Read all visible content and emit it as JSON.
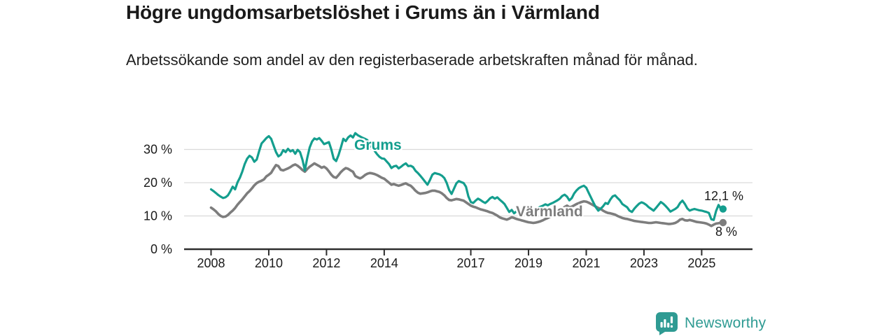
{
  "header": {
    "title": "Högre ungdomsarbetslöshet i Grums än i Värmland",
    "subtitle": "Arbetssökande som andel av den registerbaserade arbetskraften månad för månad."
  },
  "chart_data": {
    "type": "line",
    "title": "Högre ungdomsarbetslöshet i Grums än i Värmland",
    "subtitle": "Arbetssökande som andel av den registerbaserade arbetskraften månad för månad.",
    "xlabel": "",
    "ylabel": "",
    "grid": "horizontal",
    "x_frequency": "monthly",
    "x_start": "2008-01",
    "x_end": "2025-09",
    "xticks": [
      2008,
      2010,
      2012,
      2014,
      2017,
      2019,
      2021,
      2023,
      2025
    ],
    "xtick_labels": [
      "2008",
      "2010",
      "2012",
      "2014",
      "2017",
      "2019",
      "2021",
      "2023",
      "2025"
    ],
    "ylim": [
      0,
      36
    ],
    "yticks": [
      0,
      10,
      20,
      30
    ],
    "ytick_labels": [
      "0 %",
      "10 %",
      "20 %",
      "30 %"
    ],
    "series": [
      {
        "name": "Grums",
        "color": "#149e8e",
        "end_label": "12,1 %",
        "end_value": 12.1,
        "values": [
          18.0,
          17.5,
          16.9,
          16.3,
          15.8,
          15.4,
          15.6,
          16.2,
          17.4,
          18.8,
          18.0,
          20.1,
          21.5,
          23.4,
          25.6,
          27.2,
          28.1,
          27.6,
          26.3,
          27.0,
          29.5,
          31.8,
          32.6,
          33.4,
          34.0,
          33.2,
          31.2,
          29.2,
          27.9,
          28.4,
          29.8,
          29.2,
          30.2,
          29.4,
          29.8,
          28.7,
          29.9,
          29.2,
          26.9,
          23.7,
          27.4,
          30.6,
          32.4,
          33.3,
          33.0,
          33.4,
          32.6,
          31.6,
          31.9,
          32.2,
          30.0,
          27.2,
          26.5,
          28.3,
          30.6,
          33.2,
          32.5,
          33.6,
          34.2,
          33.6,
          34.9,
          34.3,
          33.9,
          33.5,
          33.2,
          32.8,
          31.5,
          30.4,
          29.6,
          28.6,
          27.8,
          27.3,
          27.2,
          26.4,
          25.6,
          24.4,
          24.9,
          25.1,
          24.3,
          24.8,
          25.4,
          25.8,
          25.0,
          25.1,
          24.7,
          23.6,
          22.9,
          22.1,
          21.2,
          20.3,
          19.4,
          20.8,
          22.4,
          22.9,
          22.7,
          22.5,
          22.1,
          21.4,
          19.9,
          17.8,
          16.6,
          18.2,
          19.8,
          20.5,
          20.2,
          19.9,
          18.8,
          15.9,
          14.2,
          13.9,
          14.6,
          15.2,
          14.8,
          14.3,
          13.9,
          14.5,
          15.3,
          15.7,
          15.2,
          15.6,
          14.9,
          14.3,
          13.6,
          12.4,
          11.2,
          11.8,
          10.8,
          11.4,
          11.0,
          11.6,
          12.1,
          12.4,
          12.8,
          12.2,
          11.6,
          11.9,
          12.4,
          12.8,
          13.1,
          13.5,
          13.2,
          13.6,
          13.9,
          14.3,
          14.7,
          15.2,
          16.0,
          16.4,
          15.8,
          14.7,
          15.4,
          16.8,
          17.7,
          18.4,
          18.8,
          19.1,
          18.5,
          17.0,
          15.5,
          14.0,
          12.6,
          11.6,
          12.2,
          12.9,
          13.9,
          13.6,
          14.9,
          15.9,
          16.2,
          15.4,
          14.7,
          13.6,
          13.1,
          12.6,
          11.6,
          11.2,
          12.2,
          13.0,
          13.7,
          14.1,
          13.8,
          13.3,
          12.6,
          12.1,
          11.6,
          12.4,
          13.3,
          14.2,
          13.7,
          13.0,
          12.2,
          11.3,
          11.7,
          12.1,
          12.7,
          13.9,
          14.6,
          13.6,
          12.3,
          11.6,
          11.9,
          12.1,
          11.9,
          11.7,
          11.6,
          11.4,
          11.2,
          10.9,
          9.0,
          8.8,
          11.5,
          13.3,
          12.1
        ]
      },
      {
        "name": "Värmland",
        "color": "#7d7d7d",
        "end_label": "8 %",
        "end_value": 8.0,
        "values": [
          12.5,
          12.0,
          11.4,
          10.6,
          10.0,
          9.7,
          9.8,
          10.3,
          11.0,
          11.6,
          12.4,
          13.4,
          14.2,
          15.0,
          15.9,
          16.8,
          17.5,
          18.3,
          19.2,
          19.9,
          20.3,
          20.6,
          21.0,
          21.9,
          22.4,
          23.0,
          24.2,
          25.3,
          25.0,
          23.9,
          23.7,
          24.0,
          24.3,
          24.7,
          25.2,
          25.5,
          25.1,
          24.5,
          23.8,
          23.3,
          24.1,
          24.8,
          25.3,
          25.8,
          25.4,
          25.0,
          24.5,
          24.8,
          24.3,
          23.4,
          22.4,
          21.7,
          21.5,
          22.3,
          23.2,
          23.9,
          24.4,
          24.2,
          23.7,
          23.3,
          22.0,
          21.6,
          21.3,
          21.7,
          22.3,
          22.7,
          22.9,
          22.8,
          22.6,
          22.3,
          21.9,
          21.5,
          21.2,
          20.6,
          20.0,
          19.4,
          19.6,
          19.3,
          19.1,
          19.3,
          19.6,
          19.8,
          19.4,
          19.1,
          18.4,
          17.6,
          17.0,
          16.7,
          16.8,
          16.9,
          17.1,
          17.4,
          17.6,
          17.6,
          17.4,
          17.2,
          16.8,
          16.2,
          15.4,
          14.8,
          14.7,
          14.9,
          15.1,
          15.0,
          14.8,
          14.6,
          14.1,
          13.6,
          13.1,
          12.8,
          12.6,
          12.3,
          12.0,
          11.8,
          11.6,
          11.4,
          11.1,
          10.9,
          10.5,
          10.1,
          9.6,
          9.3,
          9.1,
          8.9,
          9.2,
          9.6,
          9.4,
          9.1,
          8.9,
          8.7,
          8.5,
          8.3,
          8.1,
          8.0,
          7.9,
          8.0,
          8.2,
          8.4,
          8.7,
          9.1,
          9.4,
          9.8,
          10.2,
          10.7,
          11.2,
          11.6,
          12.1,
          12.7,
          13.1,
          12.6,
          12.8,
          13.2,
          13.6,
          13.9,
          14.2,
          14.4,
          14.3,
          14.0,
          13.6,
          13.2,
          12.8,
          12.4,
          12.1,
          11.6,
          11.2,
          10.9,
          10.8,
          10.6,
          10.4,
          10.0,
          9.7,
          9.4,
          9.2,
          9.1,
          8.9,
          8.7,
          8.5,
          8.4,
          8.3,
          8.2,
          8.1,
          8.0,
          7.9,
          7.9,
          8.0,
          8.1,
          8.0,
          7.9,
          7.8,
          7.7,
          7.6,
          7.6,
          7.7,
          7.9,
          8.3,
          8.9,
          9.1,
          8.7,
          8.6,
          8.8,
          8.6,
          8.4,
          8.2,
          8.1,
          8.0,
          7.9,
          7.7,
          7.4,
          7.0,
          7.4,
          7.7,
          7.8,
          8.0
        ]
      }
    ],
    "legend": "inline-labels",
    "colors": {
      "grid": "#d9d9d9",
      "axis": "#2e2e2e",
      "text": "#1a1a1a"
    }
  },
  "footer": {
    "brand": "Newsworthy",
    "brand_color": "#2f9b93",
    "icon": "newsworthy-chart-bubble-icon"
  }
}
